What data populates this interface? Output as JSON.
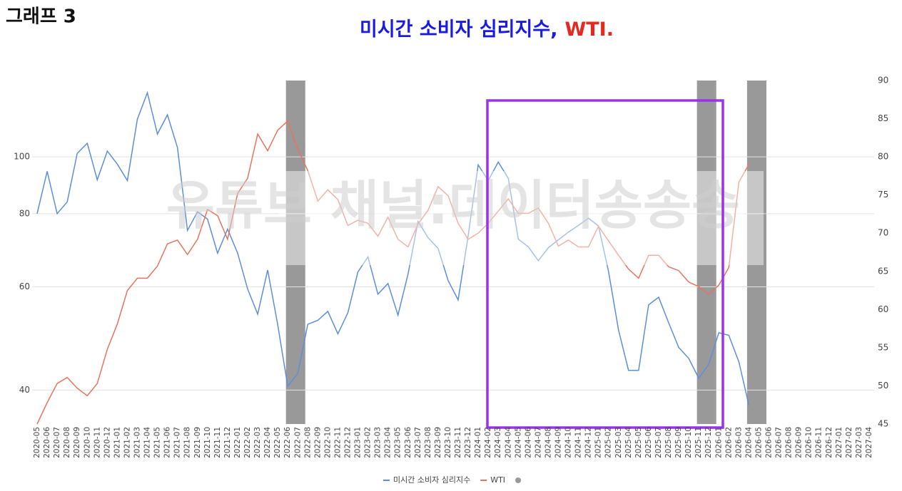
{
  "header": "그래프 3",
  "watermark": "유튜브 채널:데이터송송송",
  "chart_data": {
    "type": "line",
    "title_parts": [
      {
        "text": "미시간 소비자 심리지수,",
        "color": "#1a1ae6"
      },
      {
        "text": "WTI.",
        "color": "#e8281e"
      }
    ],
    "categories": [
      "2020-05",
      "2020-06",
      "2020-07",
      "2020-08",
      "2020-09",
      "2020-10",
      "2020-11",
      "2020-12",
      "2021-01",
      "2021-02",
      "2021-03",
      "2021-04",
      "2021-05",
      "2021-06",
      "2021-07",
      "2021-08",
      "2021-09",
      "2021-10",
      "2021-11",
      "2021-12",
      "2022-01",
      "2022-02",
      "2022-03",
      "2022-04",
      "2022-05",
      "2022-06",
      "2022-07",
      "2022-08",
      "2022-09",
      "2022-10",
      "2022-11",
      "2022-12",
      "2023-01",
      "2023-02",
      "2023-03",
      "2023-04",
      "2023-05",
      "2023-06",
      "2023-07",
      "2023-08",
      "2023-09",
      "2023-10",
      "2023-11",
      "2023-12",
      "2024-01",
      "2024-02",
      "2024-03",
      "2024-04",
      "2024-05",
      "2024-06",
      "2024-07",
      "2024-08",
      "2024-09",
      "2024-10",
      "2024-11",
      "2024-12",
      "2025-01",
      "2025-02",
      "2025-03",
      "2025-04",
      "2025-05",
      "2025-06",
      "2025-07",
      "2025-08",
      "2025-09",
      "2025-10",
      "2025-11",
      "2025-12",
      "2026-01",
      "2026-02",
      "2026-03",
      "2026-04",
      "2026-05",
      "2026-06",
      "2026-07",
      "2026-08",
      "2026-09",
      "2026-10",
      "2026-11",
      "2026-12",
      "2027-01",
      "2027-02",
      "2027-03",
      "2027-04"
    ],
    "series": [
      {
        "name": "미시간 소비자 심리지수",
        "color": "#5b8fdc",
        "axis": "y",
        "values": [
          80,
          94.5,
          80,
          83.8,
          101.4,
          105.5,
          91.4,
          102.3,
          97.2,
          91.1,
          116,
          128.7,
          109.4,
          118,
          103.7,
          74.9,
          80.6,
          78.3,
          68.5,
          75.3,
          68.5,
          59.5,
          53.9,
          64.1,
          51.7,
          40.6,
          42.7,
          51.8,
          52.6,
          54.5,
          49.9,
          54.2,
          63.6,
          67.5,
          58.3,
          60.8,
          53.7,
          63.1,
          77.6,
          72.8,
          69.8,
          61.5,
          57,
          73.4,
          96.9,
          91.1,
          98,
          91.9,
          72.4,
          70.2,
          66.5,
          70,
          72.2,
          74.4,
          76.4,
          78.6,
          76.2,
          63.8,
          50.6,
          43.2,
          43.2,
          55.9,
          57.6,
          52.1,
          47.3,
          45.3,
          41.9,
          44.3,
          50.1,
          49.6,
          44.7,
          37.7,
          null,
          null,
          null,
          null,
          null,
          null,
          null,
          null,
          null,
          null,
          null,
          null
        ]
      },
      {
        "name": "WTI",
        "color": "#e8745e",
        "axis": "y2",
        "values": [
          45,
          47.8,
          50.3,
          51.1,
          49.7,
          48.7,
          50.3,
          54.8,
          58.1,
          62.5,
          64.1,
          64.1,
          65.7,
          68.6,
          69.1,
          67.2,
          69.2,
          73.1,
          72.3,
          69.2,
          75.2,
          77.2,
          83,
          80.8,
          83.5,
          84.7,
          81,
          78.2,
          74.2,
          75.7,
          74.4,
          71,
          71.7,
          71.3,
          69.6,
          72.1,
          69.2,
          68.2,
          71.2,
          73,
          76.1,
          74.9,
          71.3,
          69.2,
          70,
          71.3,
          72.9,
          74.5,
          72.6,
          72.6,
          73.3,
          71.3,
          68.3,
          69.1,
          68.2,
          68.2,
          70.9,
          69,
          67.1,
          65.3,
          64.1,
          67.1,
          67.1,
          65.6,
          65.1,
          63.6,
          63,
          62,
          63.2,
          65.5,
          76.7,
          79,
          null,
          null,
          null,
          null,
          null,
          null,
          null,
          null,
          null,
          null,
          null,
          null
        ]
      },
      {
        "type": "bar",
        "color": "#999999",
        "axis": "y2",
        "values": [
          null,
          null,
          null,
          null,
          null,
          null,
          null,
          null,
          null,
          null,
          null,
          null,
          null,
          null,
          null,
          null,
          null,
          null,
          null,
          null,
          null,
          null,
          null,
          null,
          null,
          90,
          null,
          null,
          null,
          null,
          null,
          null,
          null,
          null,
          null,
          null,
          null,
          null,
          null,
          null,
          null,
          null,
          null,
          null,
          null,
          null,
          null,
          null,
          null,
          null,
          null,
          null,
          null,
          null,
          null,
          null,
          null,
          null,
          null,
          null,
          null,
          null,
          null,
          null,
          null,
          null,
          90,
          null,
          null,
          null,
          null,
          90,
          null,
          null,
          null,
          null,
          null,
          null,
          null,
          null,
          null,
          null,
          null,
          null
        ]
      }
    ],
    "log_y": true,
    "ylim": [
      35,
      135
    ],
    "yticks": [
      40,
      60,
      80,
      100
    ],
    "y2lim": [
      45,
      90
    ],
    "y2ticks": [
      45,
      50,
      55,
      60,
      65,
      70,
      75,
      80,
      85,
      90
    ],
    "grid": true,
    "legend": "bottom"
  }
}
